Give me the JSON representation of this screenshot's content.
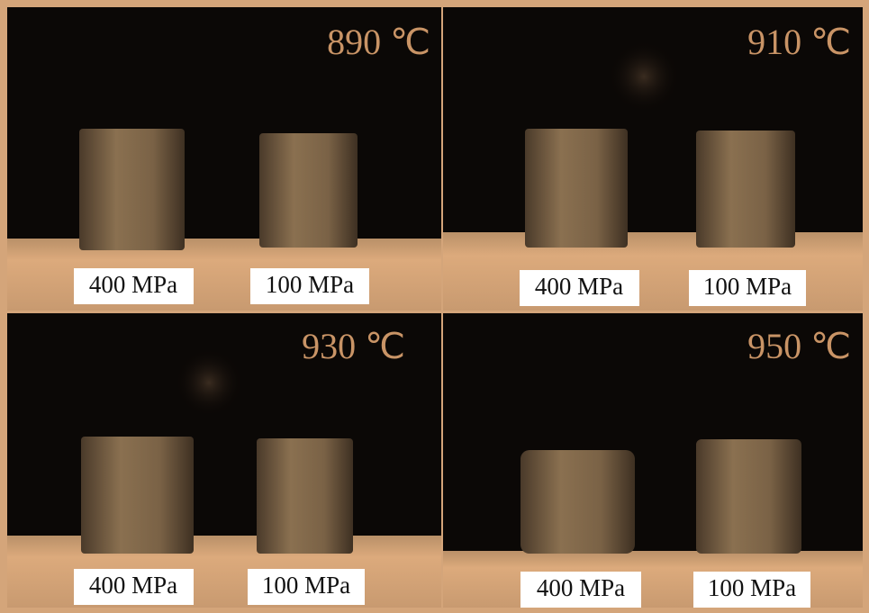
{
  "panels": [
    {
      "temperature": "890 ℃",
      "labels": [
        "400 MPa",
        "100 MPa"
      ]
    },
    {
      "temperature": "910 ℃",
      "labels": [
        "400 MPa",
        "100 MPa"
      ]
    },
    {
      "temperature": "930 ℃",
      "labels": [
        "400 MPa",
        "100 MPa"
      ]
    },
    {
      "temperature": "950 ℃",
      "labels": [
        "400 MPa",
        "100 MPa"
      ]
    }
  ]
}
